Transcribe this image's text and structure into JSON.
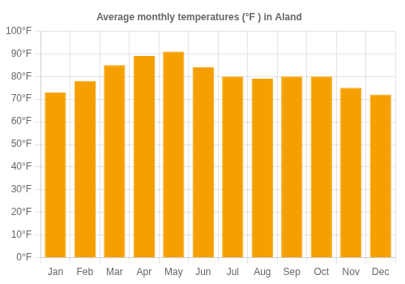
{
  "chart_data": {
    "type": "bar",
    "title": "Average monthly temperatures (°F ) in Aland",
    "categories": [
      "Jan",
      "Feb",
      "Mar",
      "Apr",
      "May",
      "Jun",
      "Jul",
      "Aug",
      "Sep",
      "Oct",
      "Nov",
      "Dec"
    ],
    "values": [
      73,
      78,
      85,
      89,
      91,
      84,
      80,
      79,
      80,
      80,
      75,
      72
    ],
    "color": "#F5A000",
    "ylim": [
      0,
      100
    ],
    "yticks": [
      {
        "value": 0,
        "label": "0°F"
      },
      {
        "value": 10,
        "label": "10°F"
      },
      {
        "value": 20,
        "label": "20°F"
      },
      {
        "value": 30,
        "label": "30°F"
      },
      {
        "value": 40,
        "label": "40°F"
      },
      {
        "value": 50,
        "label": "50°F"
      },
      {
        "value": 60,
        "label": "60°F"
      },
      {
        "value": 70,
        "label": "70°F"
      },
      {
        "value": 80,
        "label": "80°F"
      },
      {
        "value": 90,
        "label": "90°F"
      },
      {
        "value": 100,
        "label": "100°F"
      }
    ],
    "grid": true
  }
}
